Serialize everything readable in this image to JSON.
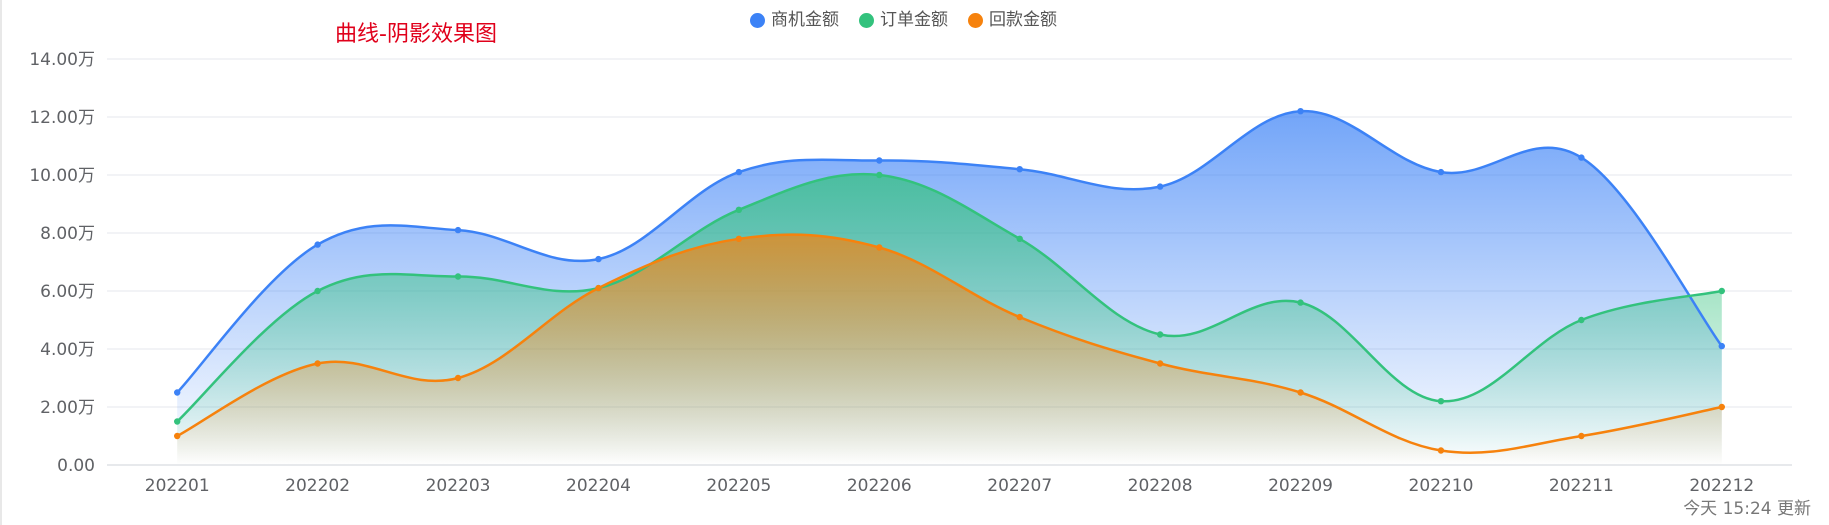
{
  "chart_data": {
    "type": "area",
    "title": "曲线-阴影效果图",
    "categories": [
      "202201",
      "202202",
      "202203",
      "202204",
      "202205",
      "202206",
      "202207",
      "202208",
      "202209",
      "202210",
      "202211",
      "202212"
    ],
    "ylim": [
      0,
      14
    ],
    "yticks": [
      0,
      2,
      4,
      6,
      8,
      10,
      12,
      14
    ],
    "ytick_labels": [
      "0.00",
      "2.00万",
      "4.00万",
      "6.00万",
      "8.00万",
      "10.00万",
      "12.00万",
      "14.00万"
    ],
    "grid": true,
    "smooth": true,
    "legend_position": "top-center",
    "series": [
      {
        "name": "商机金额",
        "color": "#3c82f6",
        "values": [
          2.5,
          7.6,
          8.1,
          7.1,
          10.1,
          10.5,
          10.2,
          9.6,
          12.2,
          10.1,
          10.6,
          4.1
        ]
      },
      {
        "name": "订单金额",
        "color": "#33c27d",
        "values": [
          1.5,
          6.0,
          6.5,
          6.1,
          8.8,
          10.0,
          7.8,
          4.5,
          5.6,
          2.2,
          5.0,
          6.0
        ]
      },
      {
        "name": "回款金额",
        "color": "#f6820d",
        "values": [
          1.0,
          3.5,
          3.0,
          6.1,
          7.8,
          7.5,
          5.1,
          3.5,
          2.5,
          0.5,
          1.0,
          2.0
        ]
      }
    ]
  },
  "update_label": "今天 15:24 更新"
}
